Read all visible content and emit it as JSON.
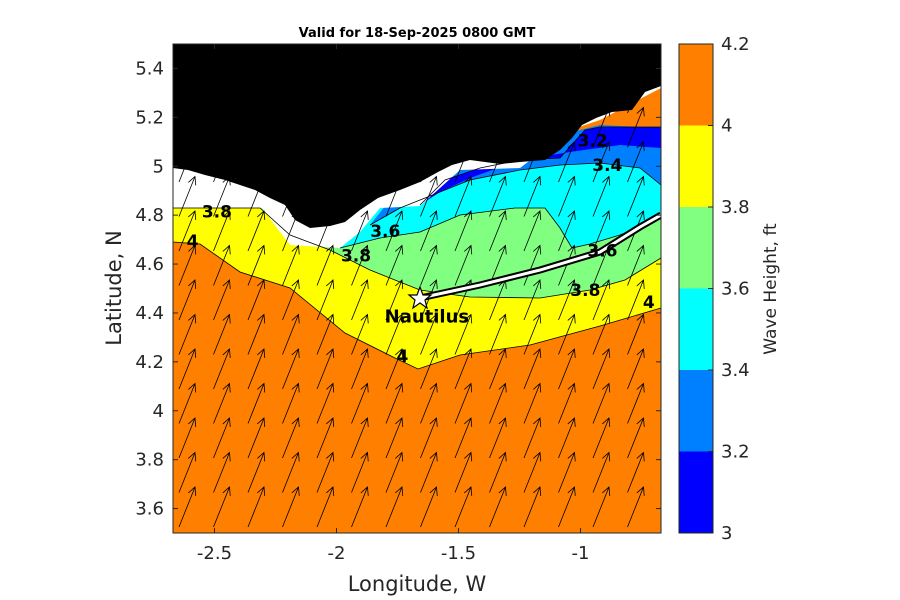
{
  "chart_data": {
    "type": "filled-contour-map",
    "title": "Valid for 18-Sep-2025 0800 GMT",
    "xlabel": "Longitude, W",
    "ylabel": "Latitude, N",
    "xlim": [
      -2.67,
      -0.67
    ],
    "ylim": [
      3.5,
      5.5
    ],
    "xticks": [
      -2.5,
      -2,
      -1.5,
      -1
    ],
    "xtick_labels": [
      "-2.5",
      "-2",
      "-1.5",
      "-1"
    ],
    "yticks": [
      3.6,
      3.8,
      4,
      4.2,
      4.4,
      4.6,
      4.8,
      5,
      5.2,
      5.4
    ],
    "ytick_labels": [
      "3.6",
      "3.8",
      "4",
      "4.2",
      "4.4",
      "4.6",
      "4.8",
      "5",
      "5.2",
      "5.4"
    ],
    "colorbar": {
      "label": "Wave Height, ft",
      "range": [
        3,
        4.2
      ],
      "levels": [
        {
          "from": 3.0,
          "to": 3.2,
          "color": "#0000ff"
        },
        {
          "from": 3.2,
          "to": 3.4,
          "color": "#0080ff"
        },
        {
          "from": 3.4,
          "to": 3.6,
          "color": "#00ffff"
        },
        {
          "from": 3.6,
          "to": 3.8,
          "color": "#80ff80"
        },
        {
          "from": 3.8,
          "to": 4.0,
          "color": "#ffff00"
        },
        {
          "from": 4.0,
          "to": 4.2,
          "color": "#ff8000"
        }
      ],
      "tick_labels": [
        "3",
        "3.2",
        "3.4",
        "3.6",
        "3.8",
        "4",
        "4.2"
      ]
    },
    "contour_labels": [
      {
        "text": "3.2",
        "lon": -0.95,
        "lat": 5.08
      },
      {
        "text": "3.4",
        "lon": -0.89,
        "lat": 4.98
      },
      {
        "text": "3.6",
        "lon": -1.8,
        "lat": 4.71
      },
      {
        "text": "3.6",
        "lon": -0.91,
        "lat": 4.63
      },
      {
        "text": "3.8",
        "lon": -2.49,
        "lat": 4.79
      },
      {
        "text": "3.8",
        "lon": -1.92,
        "lat": 4.61
      },
      {
        "text": "3.8",
        "lon": -0.98,
        "lat": 4.47
      },
      {
        "text": "4",
        "lon": -2.59,
        "lat": 4.67
      },
      {
        "text": "4",
        "lon": -1.73,
        "lat": 4.2
      },
      {
        "text": "4",
        "lon": -0.72,
        "lat": 4.42
      }
    ],
    "marker": {
      "label": "Nautilus",
      "lon": -1.65,
      "lat": 4.46
    },
    "land_color": "#000000",
    "vector_field": "wave direction arrows pointing north-northeast"
  }
}
